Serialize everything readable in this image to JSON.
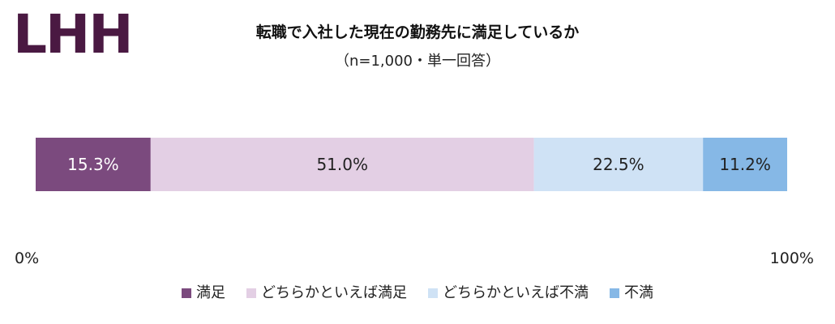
{
  "brand": {
    "logo_text": "LHH",
    "logo_color": "#4a1942"
  },
  "chart_data": {
    "type": "bar",
    "orientation": "horizontal-stacked-100",
    "title": "転職で入社した現在の勤務先に満足しているか",
    "subtitle": "（n=1,000・単一回答）",
    "categories": [
      ""
    ],
    "series": [
      {
        "name": "満足",
        "values": [
          15.3
        ],
        "label": "15.3%",
        "color": "#7b4a7e",
        "label_color": "#ffffff"
      },
      {
        "name": "どちらかといえば満足",
        "values": [
          51.0
        ],
        "label": "51.0%",
        "color": "#e3cfe4",
        "label_color": "#222222"
      },
      {
        "name": "どちらかといえば不満",
        "values": [
          22.5
        ],
        "label": "22.5%",
        "color": "#cfe2f5",
        "label_color": "#222222"
      },
      {
        "name": "不満",
        "values": [
          11.2
        ],
        "label": "11.2%",
        "color": "#86b8e6",
        "label_color": "#222222"
      }
    ],
    "xlim": [
      0,
      100
    ],
    "tick_labels": [
      "0%",
      "100%"
    ],
    "grid": false,
    "legend_position": "bottom"
  }
}
